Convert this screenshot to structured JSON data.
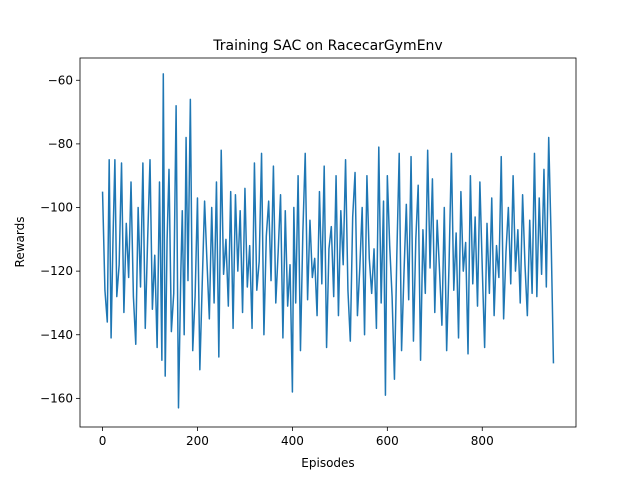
{
  "chart_data": {
    "type": "line",
    "title": "Training SAC on RacecarGymEnv",
    "xlabel": "Episodes",
    "ylabel": "Rewards",
    "xlim": [
      -47.5,
      997.5
    ],
    "ylim": [
      -169,
      -53
    ],
    "xticks": [
      0,
      200,
      400,
      600,
      800
    ],
    "yticks": [
      -160,
      -140,
      -120,
      -100,
      -80,
      -60
    ],
    "grid": false,
    "legend": "none",
    "series": [
      {
        "color": "#1f77b4",
        "x": [
          0,
          5,
          10,
          14,
          18,
          22,
          26,
          30,
          35,
          40,
          45,
          50,
          55,
          60,
          65,
          70,
          75,
          80,
          85,
          90,
          95,
          100,
          105,
          110,
          115,
          120,
          125,
          128,
          132,
          136,
          140,
          145,
          150,
          155,
          160,
          165,
          168,
          172,
          176,
          180,
          185,
          190,
          195,
          200,
          205,
          210,
          215,
          220,
          225,
          230,
          235,
          240,
          245,
          250,
          255,
          260,
          265,
          270,
          275,
          280,
          285,
          290,
          295,
          300,
          305,
          310,
          315,
          320,
          325,
          330,
          335,
          340,
          345,
          350,
          355,
          360,
          365,
          370,
          375,
          380,
          385,
          390,
          395,
          400,
          403,
          407,
          412,
          417,
          422,
          427,
          432,
          437,
          442,
          447,
          452,
          457,
          462,
          467,
          472,
          477,
          482,
          487,
          492,
          497,
          502,
          507,
          512,
          517,
          522,
          527,
          532,
          537,
          542,
          547,
          552,
          557,
          562,
          567,
          572,
          577,
          582,
          587,
          592,
          596,
          600,
          605,
          610,
          615,
          620,
          625,
          630,
          635,
          640,
          645,
          650,
          655,
          660,
          665,
          670,
          675,
          680,
          685,
          690,
          695,
          700,
          705,
          710,
          715,
          720,
          725,
          730,
          735,
          740,
          745,
          750,
          755,
          760,
          765,
          770,
          775,
          780,
          785,
          790,
          795,
          800,
          805,
          810,
          815,
          820,
          825,
          830,
          835,
          840,
          845,
          850,
          855,
          860,
          865,
          870,
          875,
          880,
          885,
          890,
          895,
          900,
          905,
          910,
          915,
          920,
          925,
          930,
          935,
          940,
          945,
          950
        ],
        "y": [
          -95,
          -126,
          -136,
          -85,
          -141,
          -110,
          -85,
          -128,
          -118,
          -86,
          -133,
          -105,
          -122,
          -92,
          -128,
          -143,
          -100,
          -125,
          -86,
          -138,
          -110,
          -85,
          -132,
          -115,
          -144,
          -92,
          -148,
          -58,
          -153,
          -110,
          -88,
          -139,
          -127,
          -68,
          -163,
          -120,
          -101,
          -140,
          -78,
          -123,
          -66,
          -145,
          -128,
          -97,
          -151,
          -124,
          -98,
          -117,
          -135,
          -100,
          -130,
          -92,
          -147,
          -82,
          -121,
          -110,
          -131,
          -95,
          -138,
          -96,
          -120,
          -101,
          -133,
          -94,
          -125,
          -112,
          -138,
          -86,
          -126,
          -117,
          -83,
          -140,
          -109,
          -98,
          -123,
          -87,
          -130,
          -114,
          -96,
          -141,
          -101,
          -131,
          -118,
          -158,
          -100,
          -130,
          -90,
          -145,
          -108,
          -83,
          -129,
          -104,
          -122,
          -116,
          -134,
          -95,
          -124,
          -87,
          -144,
          -113,
          -106,
          -128,
          -90,
          -134,
          -101,
          -118,
          -85,
          -126,
          -142,
          -103,
          -89,
          -134,
          -119,
          -100,
          -140,
          -90,
          -116,
          -127,
          -113,
          -138,
          -81,
          -130,
          -98,
          -159,
          -90,
          -112,
          -128,
          -154,
          -115,
          -83,
          -145,
          -121,
          -99,
          -129,
          -84,
          -142,
          -110,
          -93,
          -148,
          -107,
          -127,
          -82,
          -119,
          -91,
          -133,
          -104,
          -120,
          -137,
          -100,
          -145,
          -118,
          -83,
          -126,
          -108,
          -141,
          -95,
          -120,
          -111,
          -146,
          -90,
          -124,
          -103,
          -131,
          -92,
          -119,
          -144,
          -105,
          -127,
          -97,
          -134,
          -112,
          -122,
          -84,
          -135,
          -114,
          -100,
          -124,
          -90,
          -120,
          -107,
          -130,
          -96,
          -118,
          -134,
          -104,
          -127,
          -83,
          -128,
          -97,
          -121,
          -88,
          -125,
          -78,
          -109,
          -149
        ]
      }
    ]
  }
}
